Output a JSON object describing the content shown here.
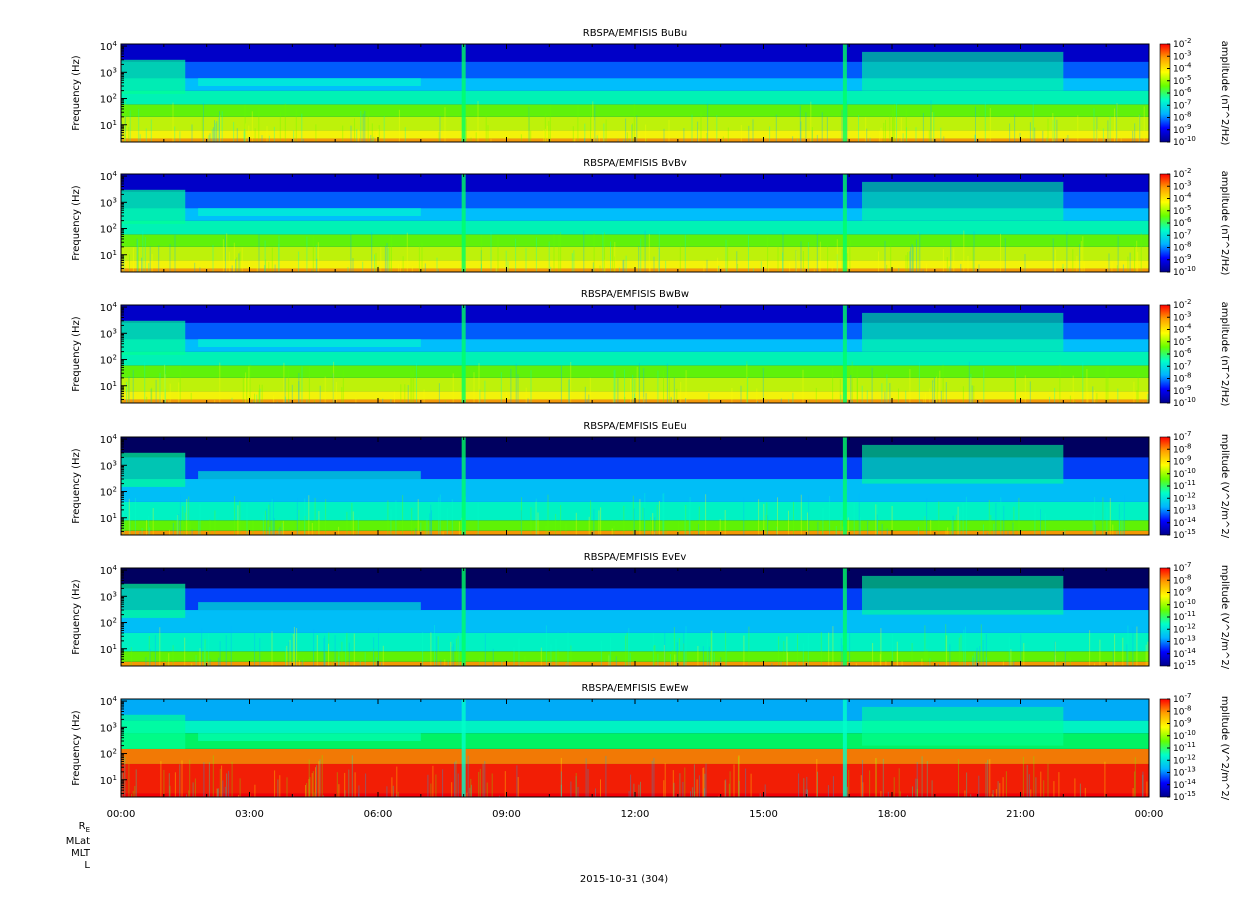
{
  "figure": {
    "date_label": "2015-10-31 (304)",
    "ephemeris_labels": [
      "R",
      "MLat",
      "MLT",
      "L"
    ],
    "ephemeris_subscript": "E"
  },
  "chart_data": [
    {
      "type": "heatmap",
      "title": "RBSPA/EMFISIS  BuBu",
      "ylabel": "Frequency (Hz)",
      "yscale": "log",
      "yticks": [
        "10^1",
        "10^2",
        "10^3",
        "10^4"
      ],
      "ylim_hz": [
        2.2,
        12000
      ],
      "colorbar_label": "amplitude (nT^2/Hz)",
      "colorbar_ticks": [
        "10^-2",
        "10^-3",
        "10^-4",
        "10^-5",
        "10^-6",
        "10^-7",
        "10^-8",
        "10^-9",
        "10^-10"
      ],
      "colorbar_range": [
        -10,
        -2
      ]
    },
    {
      "type": "heatmap",
      "title": "RBSPA/EMFISIS  BvBv",
      "ylabel": "Frequency (Hz)",
      "yscale": "log",
      "yticks": [
        "10^1",
        "10^2",
        "10^3",
        "10^4"
      ],
      "ylim_hz": [
        2.2,
        12000
      ],
      "colorbar_label": "amplitude (nT^2/Hz)",
      "colorbar_ticks": [
        "10^-2",
        "10^-3",
        "10^-4",
        "10^-5",
        "10^-6",
        "10^-7",
        "10^-8",
        "10^-9",
        "10^-10"
      ],
      "colorbar_range": [
        -10,
        -2
      ]
    },
    {
      "type": "heatmap",
      "title": "RBSPA/EMFISIS  BwBw",
      "ylabel": "Frequency (Hz)",
      "yscale": "log",
      "yticks": [
        "10^1",
        "10^2",
        "10^3",
        "10^4"
      ],
      "ylim_hz": [
        2.2,
        12000
      ],
      "colorbar_label": "amplitude (nT^2/Hz)",
      "colorbar_ticks": [
        "10^-2",
        "10^-3",
        "10^-4",
        "10^-5",
        "10^-6",
        "10^-7",
        "10^-8",
        "10^-9",
        "10^-10"
      ],
      "colorbar_range": [
        -10,
        -2
      ]
    },
    {
      "type": "heatmap",
      "title": "RBSPA/EMFISIS  EuEu",
      "ylabel": "Frequency (Hz)",
      "yscale": "log",
      "yticks": [
        "10^1",
        "10^2",
        "10^3",
        "10^4"
      ],
      "ylim_hz": [
        2.2,
        12000
      ],
      "colorbar_label": "mplitude (V^2/m^2/",
      "colorbar_ticks": [
        "10^-7",
        "10^-8",
        "10^-9",
        "10^-10",
        "10^-11",
        "10^-12",
        "10^-13",
        "10^-14",
        "10^-15"
      ],
      "colorbar_range": [
        -15,
        -7
      ]
    },
    {
      "type": "heatmap",
      "title": "RBSPA/EMFISIS  EvEv",
      "ylabel": "Frequency (Hz)",
      "yscale": "log",
      "yticks": [
        "10^1",
        "10^2",
        "10^3",
        "10^4"
      ],
      "ylim_hz": [
        2.2,
        12000
      ],
      "colorbar_label": "mplitude (V^2/m^2/",
      "colorbar_ticks": [
        "10^-7",
        "10^-8",
        "10^-9",
        "10^-10",
        "10^-11",
        "10^-12",
        "10^-13",
        "10^-14",
        "10^-15"
      ],
      "colorbar_range": [
        -15,
        -7
      ]
    },
    {
      "type": "heatmap",
      "title": "RBSPA/EMFISIS  EwEw",
      "ylabel": "Frequency (Hz)",
      "yscale": "log",
      "yticks": [
        "10^1",
        "10^2",
        "10^3",
        "10^4"
      ],
      "ylim_hz": [
        2.2,
        12000
      ],
      "colorbar_label": "mplitude (V^2/m^2/",
      "colorbar_ticks": [
        "10^-7",
        "10^-8",
        "10^-9",
        "10^-10",
        "10^-11",
        "10^-12",
        "10^-13",
        "10^-14",
        "10^-15"
      ],
      "colorbar_range": [
        -15,
        -7
      ]
    }
  ],
  "time_axis": {
    "ticks": [
      "00:00",
      "03:00",
      "06:00",
      "09:00",
      "12:00",
      "15:00",
      "18:00",
      "21:00",
      "00:00"
    ],
    "range_hours": [
      0,
      24
    ]
  },
  "colors": {
    "colormap": [
      "#00008b",
      "#0000ff",
      "#00b4ff",
      "#00ffc8",
      "#64ff00",
      "#ffff00",
      "#ffa000",
      "#ff0000"
    ]
  }
}
